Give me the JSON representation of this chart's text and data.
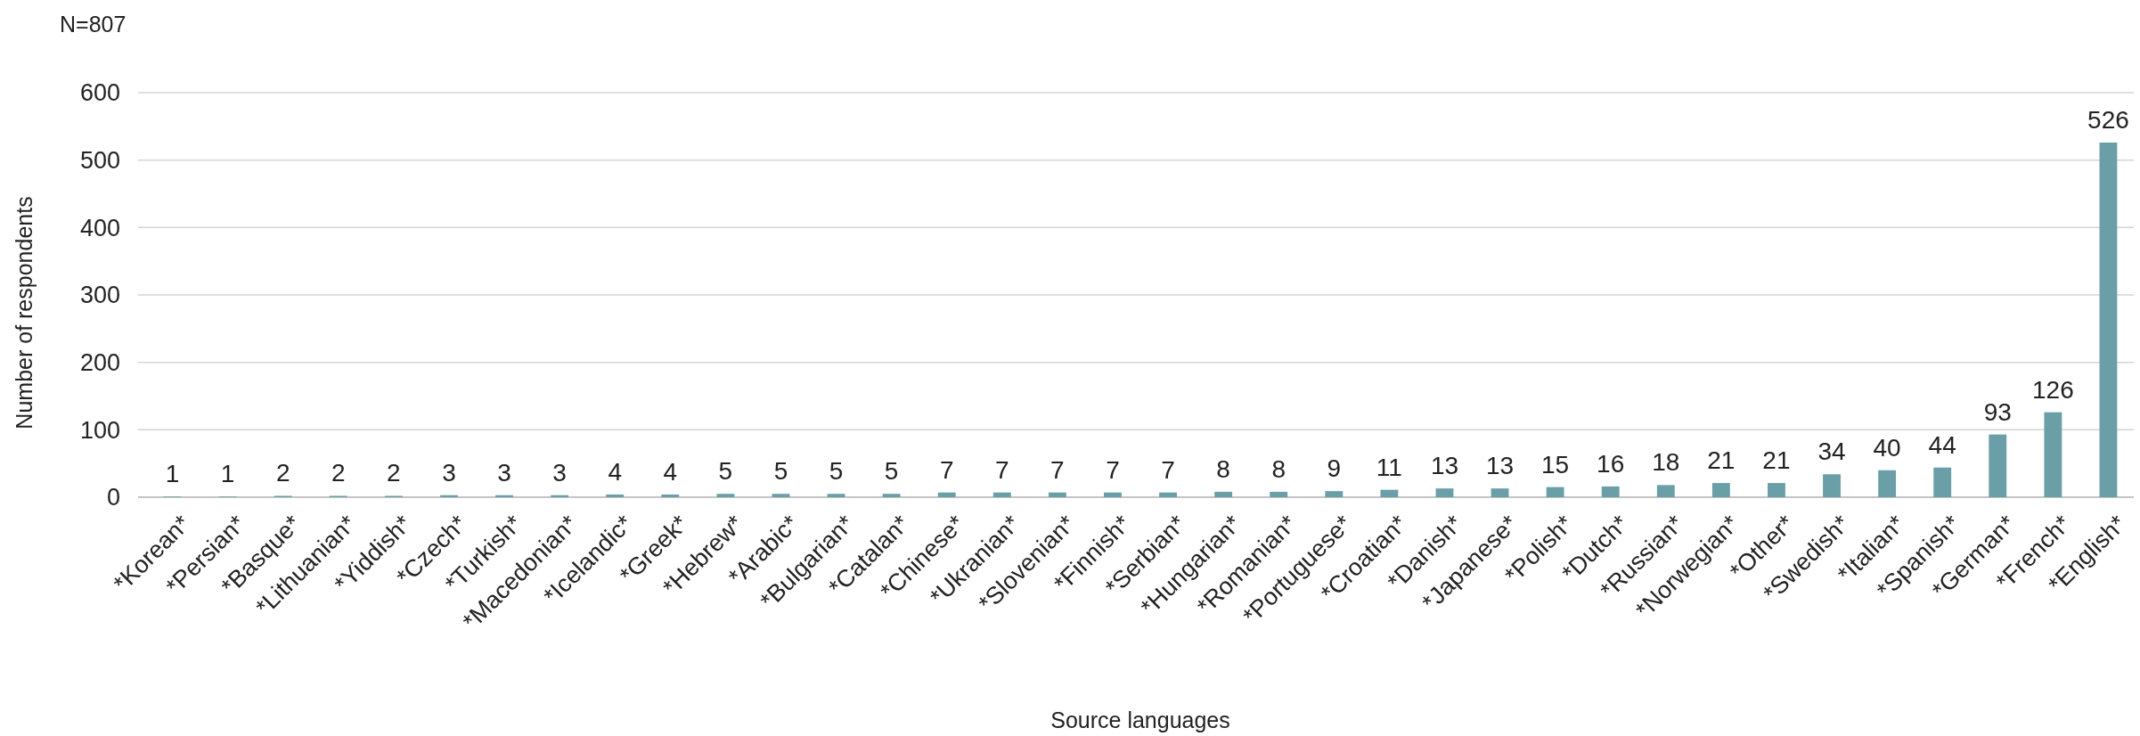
{
  "chart_data": {
    "type": "bar",
    "xlabel": "Source languages",
    "ylabel": "Number of respondents",
    "annotations": [
      "N=807"
    ],
    "categories": [
      "*Korean*",
      "*Persian*",
      "*Basque*",
      "*Lithuanian*",
      "*Yiddish*",
      "*Czech*",
      "*Turkish*",
      "*Macedonian*",
      "*Icelandic*",
      "*Greek*",
      "*Hebrew*",
      "*Arabic*",
      "*Bulgarian*",
      "*Catalan*",
      "*Chinese*",
      "*Ukranian*",
      "*Slovenian*",
      "*Finnish*",
      "*Serbian*",
      "*Hungarian*",
      "*Romanian*",
      "*Portuguese*",
      "*Croatian*",
      "*Danish*",
      "*Japanese*",
      "*Polish*",
      "*Dutch*",
      "*Russian*",
      "*Norwegian*",
      "*Other*",
      "*Swedish*",
      "*Italian*",
      "*Spanish*",
      "*German*",
      "*French*",
      "*English*"
    ],
    "values": [
      1,
      1,
      2,
      2,
      2,
      3,
      3,
      3,
      4,
      4,
      5,
      5,
      5,
      5,
      7,
      7,
      7,
      7,
      7,
      8,
      8,
      9,
      11,
      13,
      13,
      15,
      16,
      18,
      21,
      21,
      34,
      40,
      44,
      93,
      126,
      526
    ],
    "color": "#6a9fa8",
    "ylim": [
      0,
      600
    ],
    "yticks": [
      0,
      100,
      200,
      300,
      400,
      500,
      600
    ],
    "grid": "y",
    "data_labels": true
  }
}
